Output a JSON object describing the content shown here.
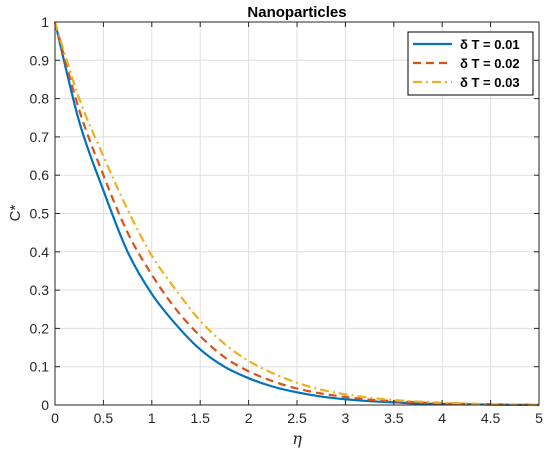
{
  "chart_data": {
    "type": "line",
    "title": "Nanoparticles",
    "xlabel": "η",
    "ylabel": "C*",
    "xlim": [
      0,
      5
    ],
    "ylim": [
      0,
      1
    ],
    "xticks": [
      "0",
      "0.5",
      "1",
      "1.5",
      "2",
      "2.5",
      "3",
      "3.5",
      "4",
      "4.5",
      "5"
    ],
    "yticks": [
      "0",
      "0.1",
      "0.2",
      "0.3",
      "0.4",
      "0.5",
      "0.6",
      "0.7",
      "0.8",
      "0.9",
      "1"
    ],
    "grid": true,
    "legend_position": "top-right",
    "series": [
      {
        "name": "δ T = 0.01",
        "color": "#0072BD",
        "style": "solid",
        "x": [
          0,
          0.25,
          0.5,
          0.75,
          1,
          1.25,
          1.5,
          1.75,
          2,
          2.25,
          2.5,
          2.75,
          3,
          3.25,
          3.5,
          3.75,
          4,
          4.25,
          4.5,
          4.75,
          5
        ],
        "y": [
          1,
          0.74,
          0.56,
          0.4,
          0.29,
          0.21,
          0.145,
          0.1,
          0.07,
          0.048,
          0.033,
          0.022,
          0.015,
          0.01,
          0.007,
          0.004,
          0.003,
          0.002,
          0.001,
          0.0005,
          0
        ]
      },
      {
        "name": "δ T = 0.02",
        "color": "#D95319",
        "style": "dashed",
        "x": [
          0,
          0.25,
          0.5,
          0.75,
          1,
          1.25,
          1.5,
          1.75,
          2,
          2.25,
          2.5,
          2.75,
          3,
          3.25,
          3.5,
          3.75,
          4,
          4.25,
          4.5,
          4.75,
          5
        ],
        "y": [
          1,
          0.77,
          0.6,
          0.45,
          0.34,
          0.25,
          0.18,
          0.125,
          0.088,
          0.062,
          0.043,
          0.03,
          0.021,
          0.014,
          0.01,
          0.007,
          0.004,
          0.003,
          0.002,
          0.001,
          0
        ]
      },
      {
        "name": "δ T = 0.03",
        "color": "#EDB120",
        "style": "dashdot",
        "x": [
          0,
          0.25,
          0.5,
          0.75,
          1,
          1.25,
          1.5,
          1.75,
          2,
          2.25,
          2.5,
          2.75,
          3,
          3.25,
          3.5,
          3.75,
          4,
          4.25,
          4.5,
          4.75,
          5
        ],
        "y": [
          1,
          0.8,
          0.65,
          0.51,
          0.39,
          0.3,
          0.22,
          0.16,
          0.115,
          0.083,
          0.058,
          0.04,
          0.028,
          0.019,
          0.013,
          0.009,
          0.006,
          0.004,
          0.002,
          0.001,
          0
        ]
      }
    ]
  }
}
